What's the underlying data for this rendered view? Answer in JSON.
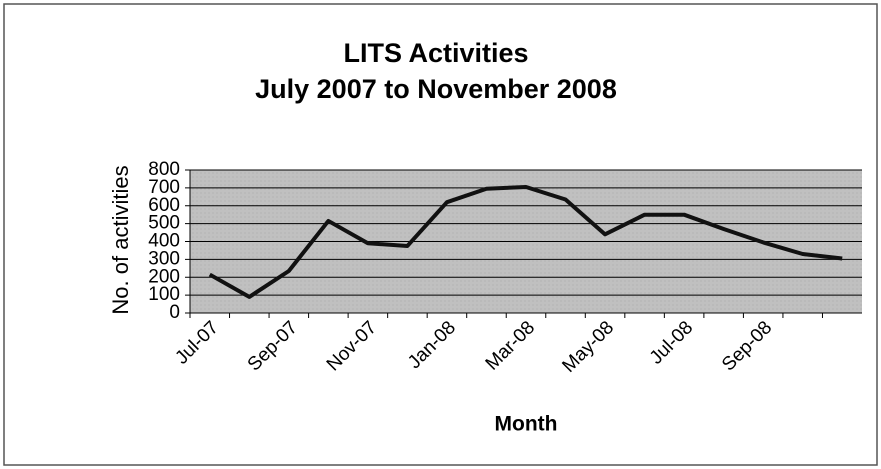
{
  "chart_data": {
    "type": "line",
    "title": "LITS Activities",
    "subtitle": "July 2007 to November 2008",
    "x_label": "Month",
    "y_label": "No. of activities",
    "categories": [
      "Jul-07",
      null,
      "Sep-07",
      null,
      "Nov-07",
      null,
      "Jan-08",
      null,
      "Mar-08",
      null,
      "May-08",
      null,
      "Jul-08",
      null,
      "Sep-08",
      null,
      null
    ],
    "series": [
      {
        "name": "Activities",
        "color": "#111111",
        "values": [
          215,
          90,
          235,
          515,
          390,
          375,
          620,
          695,
          705,
          635,
          440,
          550,
          550,
          470,
          395,
          330,
          305
        ]
      }
    ],
    "ylim": [
      0,
      800
    ],
    "yticks": [
      0,
      100,
      200,
      300,
      400,
      500,
      600,
      700,
      800
    ],
    "grid": true,
    "legend": false,
    "plot_background": "#c0c0c0"
  }
}
